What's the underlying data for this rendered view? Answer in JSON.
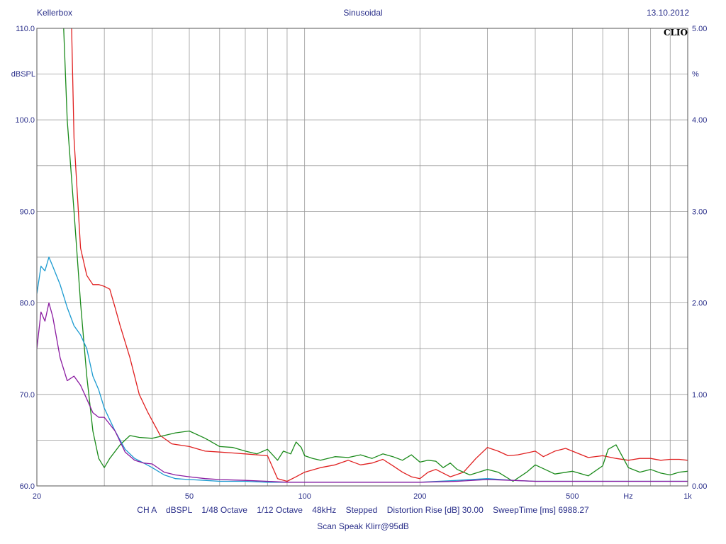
{
  "header": {
    "left": "Kellerbox",
    "center": "Sinusoidal",
    "right": "13.10.2012"
  },
  "logo": "CLIO",
  "footer": {
    "line1": "CH A    dBSPL    1/48 Octave    1/12 Octave    48kHz    Stepped    Distortion Rise [dB] 30.00    SweepTime [ms] 6988.27",
    "line2": "Scan Speak Klirr@95dB"
  },
  "colors": {
    "background": "#ffffff",
    "grid": "#9a9a9a",
    "text": "#2a2f8a",
    "red": "#e02020",
    "green": "#1a8a1a",
    "cyan": "#1a9ad0",
    "purple": "#8a1aa0"
  },
  "chart_data": {
    "type": "line",
    "xscale": "log",
    "xlim": [
      20,
      1000
    ],
    "x_ticks": [
      {
        "value": 20,
        "label": "20"
      },
      {
        "value": 50,
        "label": "50"
      },
      {
        "value": 100,
        "label": "100"
      },
      {
        "value": 200,
        "label": "200"
      },
      {
        "value": 500,
        "label": "500"
      },
      {
        "value": 1000,
        "label": "1k"
      }
    ],
    "xlabel": "Hz",
    "ylim": [
      60,
      110
    ],
    "y_ticks": [
      {
        "value": 60,
        "label": "60.0"
      },
      {
        "value": 70,
        "label": "70.0"
      },
      {
        "value": 80,
        "label": "80.0"
      },
      {
        "value": 90,
        "label": "90.0"
      },
      {
        "value": 100,
        "label": "100.0"
      },
      {
        "value": 110,
        "label": "110.0"
      }
    ],
    "ylabel": "dBSPL",
    "y2lim": [
      0,
      5
    ],
    "y2_ticks": [
      {
        "value": 0,
        "label": "0.00"
      },
      {
        "value": 1,
        "label": "1.00"
      },
      {
        "value": 2,
        "label": "2.00"
      },
      {
        "value": 3,
        "label": "3.00"
      },
      {
        "value": 4,
        "label": "4.00"
      },
      {
        "value": 5,
        "label": "5.00"
      }
    ],
    "y2label": "%",
    "grid": true,
    "series": [
      {
        "color": "#e02020",
        "x": [
          24.5,
          25,
          26,
          27,
          28,
          29,
          30,
          31,
          32,
          33,
          35,
          37,
          39,
          42,
          45,
          50,
          55,
          60,
          65,
          70,
          75,
          80,
          85,
          90,
          95,
          100,
          110,
          120,
          130,
          140,
          150,
          160,
          170,
          180,
          190,
          200,
          210,
          220,
          240,
          260,
          280,
          300,
          320,
          340,
          360,
          380,
          400,
          420,
          450,
          480,
          500,
          550,
          600,
          650,
          700,
          750,
          800,
          850,
          900,
          950,
          1000
        ],
        "y": [
          115,
          98,
          86,
          83,
          82,
          82,
          81.8,
          81.5,
          79.5,
          77.5,
          74,
          70,
          68,
          65.5,
          64.6,
          64.3,
          63.8,
          63.7,
          63.6,
          63.5,
          63.4,
          63.3,
          60.8,
          60.5,
          61,
          61.5,
          62,
          62.3,
          62.8,
          62.3,
          62.5,
          62.9,
          62.2,
          61.5,
          61,
          60.8,
          61.5,
          61.8,
          61,
          61.5,
          63,
          64.2,
          63.8,
          63.3,
          63.4,
          63.6,
          63.8,
          63.2,
          63.8,
          64.1,
          63.8,
          63.1,
          63.3,
          63,
          62.8,
          63,
          63,
          62.8,
          62.9,
          62.9,
          62.8
        ]
      },
      {
        "color": "#1a8a1a",
        "x": [
          23.5,
          24,
          25,
          26,
          27,
          28,
          29,
          30,
          31,
          33,
          35,
          37,
          40,
          43,
          46,
          50,
          55,
          60,
          65,
          70,
          75,
          80,
          85,
          88,
          92,
          95,
          98,
          100,
          105,
          110,
          120,
          130,
          140,
          150,
          160,
          170,
          180,
          190,
          200,
          210,
          220,
          230,
          240,
          250,
          270,
          300,
          320,
          350,
          380,
          400,
          450,
          500,
          550,
          600,
          620,
          650,
          700,
          750,
          800,
          850,
          900,
          950,
          1000
        ],
        "y": [
          110,
          100,
          90,
          80,
          72,
          66,
          63,
          62,
          63,
          64.5,
          65.5,
          65.3,
          65.2,
          65.5,
          65.8,
          66,
          65.2,
          64.3,
          64.2,
          63.8,
          63.5,
          64,
          62.8,
          63.8,
          63.5,
          64.8,
          64.2,
          63.3,
          63,
          62.8,
          63.2,
          63.1,
          63.4,
          63,
          63.5,
          63.2,
          62.8,
          63.4,
          62.6,
          62.8,
          62.7,
          62,
          62.5,
          61.8,
          61.2,
          61.8,
          61.5,
          60.5,
          61.5,
          62.3,
          61.3,
          61.6,
          61.1,
          62.2,
          64,
          64.5,
          62,
          61.5,
          61.8,
          61.4,
          61.2,
          61.5,
          61.6
        ]
      },
      {
        "color": "#1a9ad0",
        "x": [
          20,
          20.5,
          21,
          21.5,
          22,
          23,
          24,
          25,
          26,
          27,
          28,
          29,
          30,
          32,
          34,
          36,
          38,
          40,
          43,
          46,
          50,
          55,
          60,
          70,
          80,
          90,
          100,
          120,
          150,
          200,
          250,
          300,
          350,
          400,
          450,
          500,
          600,
          700,
          800,
          900,
          1000
        ],
        "y": [
          81,
          84,
          83.5,
          85,
          84,
          82,
          79.5,
          77.5,
          76.5,
          75,
          72,
          70.5,
          68.5,
          66,
          64,
          63,
          62.5,
          62,
          61.2,
          60.8,
          60.7,
          60.6,
          60.5,
          60.5,
          60.4,
          60.4,
          60.4,
          60.4,
          60.4,
          60.4,
          60.6,
          60.8,
          60.6,
          60.5,
          60.5,
          60.5,
          60.5,
          60.5,
          60.5,
          60.5,
          60.5
        ]
      },
      {
        "color": "#8a1aa0",
        "x": [
          20,
          20.5,
          21,
          21.5,
          22,
          23,
          24,
          25,
          26,
          27,
          28,
          29,
          30,
          32,
          34,
          36,
          38,
          40,
          43,
          46,
          50,
          55,
          60,
          70,
          80,
          90,
          100,
          120,
          150,
          200,
          250,
          300,
          350,
          400,
          450,
          500,
          600,
          700,
          800,
          900,
          1000
        ],
        "y": [
          75,
          79,
          78,
          80,
          78.5,
          74,
          71.5,
          72,
          71,
          69.5,
          68,
          67.5,
          67.5,
          66,
          63.7,
          62.8,
          62.5,
          62.4,
          61.5,
          61.2,
          61,
          60.8,
          60.7,
          60.6,
          60.5,
          60.4,
          60.4,
          60.4,
          60.4,
          60.4,
          60.5,
          60.7,
          60.6,
          60.5,
          60.5,
          60.5,
          60.5,
          60.5,
          60.5,
          60.5,
          60.5
        ]
      }
    ]
  }
}
